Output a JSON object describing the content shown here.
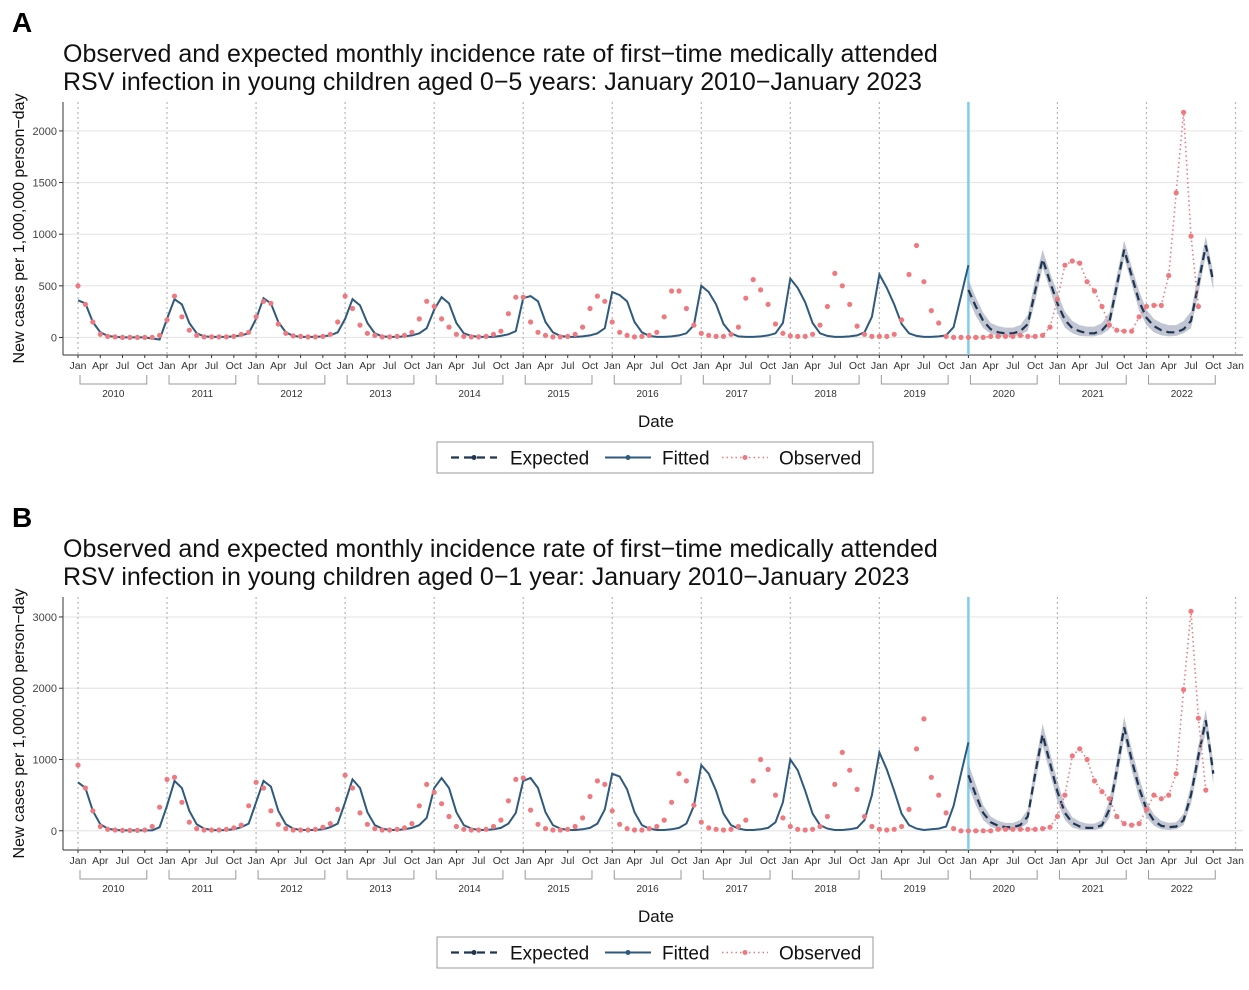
{
  "chart_data": [
    {
      "type": "line",
      "panel_label": "A",
      "title": "Observed and expected monthly incidence rate of first−time medically attended RSV infection in young children aged 0−5 years: January 2010−January 2023",
      "title_lines": [
        "Observed and expected monthly incidence rate of first−time medically attended",
        "RSV infection in young children aged 0−5 years: January 2010−January 2023"
      ],
      "xlabel": "Date",
      "ylabel": "New cases per 1,000,000 person−day",
      "ylim": [
        -170,
        2280
      ],
      "yticks": [
        0,
        500,
        1000,
        1500,
        2000
      ],
      "month_ticks": [
        "Jan",
        "Apr",
        "Jul",
        "Oct"
      ],
      "years": [
        "2010",
        "2011",
        "2012",
        "2013",
        "2014",
        "2015",
        "2016",
        "2017",
        "2018",
        "2019",
        "2020",
        "2021",
        "2022"
      ],
      "x_end_label": "Jan",
      "intervention_date": "2020-01",
      "legend": {
        "position": "bottom",
        "entries": [
          "Expected",
          "Fitted",
          "Observed"
        ]
      },
      "fitted": [
        360,
        330,
        150,
        50,
        15,
        5,
        0,
        0,
        0,
        0,
        -10,
        -20,
        180,
        370,
        320,
        140,
        40,
        10,
        5,
        5,
        5,
        10,
        20,
        40,
        180,
        380,
        330,
        150,
        50,
        15,
        5,
        5,
        5,
        10,
        20,
        50,
        180,
        370,
        310,
        140,
        40,
        10,
        5,
        5,
        10,
        20,
        40,
        90,
        270,
        390,
        330,
        140,
        40,
        15,
        5,
        5,
        5,
        15,
        30,
        60,
        380,
        400,
        350,
        150,
        50,
        15,
        5,
        5,
        10,
        20,
        40,
        90,
        440,
        410,
        350,
        150,
        50,
        15,
        5,
        5,
        10,
        20,
        40,
        120,
        500,
        440,
        320,
        130,
        40,
        10,
        5,
        5,
        10,
        20,
        40,
        140,
        570,
        480,
        340,
        140,
        40,
        15,
        5,
        5,
        10,
        20,
        50,
        200,
        610,
        480,
        320,
        130,
        40,
        15,
        5,
        5,
        10,
        20,
        100,
        400,
        700
      ],
      "expected": [
        460,
        300,
        160,
        80,
        50,
        40,
        40,
        60,
        130,
        450,
        760,
        540,
        330,
        170,
        90,
        60,
        40,
        40,
        70,
        150,
        500,
        850,
        600,
        350,
        190,
        110,
        70,
        50,
        50,
        80,
        160,
        520,
        890,
        540
      ],
      "expected_lower": [
        370,
        210,
        90,
        35,
        15,
        10,
        10,
        25,
        65,
        350,
        680,
        460,
        240,
        95,
        40,
        15,
        10,
        10,
        30,
        80,
        410,
        770,
        520,
        260,
        120,
        50,
        20,
        10,
        15,
        40,
        90,
        420,
        800,
        460
      ],
      "expected_upper": [
        560,
        390,
        240,
        140,
        110,
        95,
        95,
        120,
        220,
        560,
        850,
        630,
        430,
        250,
        160,
        120,
        105,
        105,
        140,
        240,
        600,
        940,
        690,
        450,
        270,
        180,
        140,
        120,
        120,
        160,
        250,
        630,
        980,
        630
      ],
      "observed": [
        500,
        320,
        150,
        30,
        10,
        5,
        0,
        0,
        0,
        0,
        0,
        20,
        170,
        400,
        200,
        70,
        20,
        5,
        5,
        5,
        5,
        10,
        30,
        50,
        200,
        350,
        330,
        130,
        40,
        15,
        10,
        5,
        5,
        10,
        30,
        150,
        400,
        280,
        120,
        40,
        20,
        5,
        5,
        10,
        20,
        50,
        180,
        350,
        300,
        180,
        100,
        30,
        10,
        5,
        5,
        10,
        30,
        60,
        230,
        390,
        390,
        150,
        50,
        20,
        5,
        5,
        10,
        30,
        100,
        280,
        400,
        350,
        150,
        50,
        20,
        5,
        10,
        20,
        50,
        200,
        450,
        450,
        280,
        120,
        40,
        20,
        10,
        10,
        30,
        100,
        380,
        560,
        460,
        320,
        130,
        40,
        15,
        10,
        10,
        30,
        120,
        300,
        620,
        500,
        320,
        110,
        30,
        10,
        10,
        10,
        30,
        170,
        610,
        890,
        540,
        260,
        140,
        10,
        0,
        0,
        0,
        0,
        0,
        10,
        10,
        10,
        10,
        20,
        10,
        10,
        20,
        100,
        370,
        700,
        740,
        720,
        540,
        450,
        300,
        120,
        70,
        60,
        60,
        200,
        300,
        310,
        310,
        600,
        1400,
        2180,
        980,
        300
      ]
    },
    {
      "type": "line",
      "panel_label": "B",
      "title": "Observed and expected monthly incidence rate of first−time medically attended RSV infection in young children aged 0−1 year: January 2010−January 2023",
      "title_lines": [
        "Observed and expected monthly incidence rate of first−time medically attended",
        "RSV infection in young children aged 0−1 year: January 2010−January 2023"
      ],
      "xlabel": "Date",
      "ylabel": "New cases per 1,000,000 person−day",
      "ylim": [
        -270,
        3280
      ],
      "yticks": [
        0,
        1000,
        2000,
        3000
      ],
      "month_ticks": [
        "Jan",
        "Apr",
        "Jul",
        "Oct"
      ],
      "years": [
        "2010",
        "2011",
        "2012",
        "2013",
        "2014",
        "2015",
        "2016",
        "2017",
        "2018",
        "2019",
        "2020",
        "2021",
        "2022"
      ],
      "x_end_label": "Jan",
      "intervention_date": "2020-01",
      "legend": {
        "position": "bottom",
        "entries": [
          "Expected",
          "Fitted",
          "Observed"
        ]
      },
      "fitted": [
        680,
        600,
        280,
        90,
        30,
        10,
        5,
        5,
        5,
        5,
        5,
        50,
        350,
        700,
        600,
        280,
        90,
        30,
        10,
        5,
        10,
        20,
        50,
        100,
        400,
        700,
        620,
        280,
        90,
        30,
        10,
        10,
        10,
        20,
        50,
        100,
        400,
        720,
        600,
        260,
        80,
        30,
        10,
        10,
        20,
        40,
        80,
        180,
        600,
        740,
        600,
        260,
        80,
        30,
        10,
        10,
        20,
        40,
        100,
        250,
        700,
        740,
        600,
        260,
        80,
        30,
        10,
        10,
        20,
        40,
        100,
        300,
        800,
        760,
        580,
        260,
        80,
        30,
        10,
        10,
        20,
        40,
        100,
        350,
        920,
        800,
        560,
        240,
        80,
        30,
        10,
        10,
        20,
        40,
        120,
        400,
        1000,
        850,
        560,
        240,
        80,
        30,
        10,
        10,
        20,
        40,
        150,
        500,
        1100,
        860,
        560,
        240,
        80,
        30,
        10,
        20,
        30,
        60,
        350,
        800,
        1240
      ],
      "expected": [
        780,
        500,
        250,
        120,
        70,
        50,
        50,
        80,
        200,
        800,
        1350,
        950,
        550,
        250,
        110,
        60,
        40,
        40,
        80,
        300,
        850,
        1450,
        1000,
        600,
        300,
        140,
        70,
        50,
        60,
        150,
        500,
        1050,
        1550,
        800
      ],
      "expected_lower": [
        630,
        360,
        150,
        55,
        20,
        10,
        10,
        30,
        110,
        660,
        1200,
        800,
        410,
        150,
        45,
        15,
        10,
        10,
        30,
        180,
        700,
        1300,
        850,
        460,
        190,
        70,
        20,
        10,
        20,
        80,
        380,
        900,
        1400,
        650
      ],
      "expected_upper": [
        940,
        650,
        360,
        200,
        140,
        110,
        110,
        150,
        300,
        950,
        1500,
        1100,
        700,
        360,
        190,
        130,
        100,
        100,
        150,
        430,
        1000,
        1600,
        1150,
        750,
        410,
        230,
        140,
        110,
        120,
        240,
        640,
        1200,
        1700,
        960
      ],
      "observed": [
        920,
        600,
        280,
        60,
        20,
        10,
        5,
        5,
        5,
        10,
        60,
        330,
        720,
        750,
        400,
        120,
        30,
        10,
        10,
        10,
        20,
        40,
        80,
        350,
        680,
        600,
        280,
        90,
        30,
        10,
        10,
        10,
        20,
        50,
        100,
        300,
        780,
        600,
        250,
        90,
        30,
        10,
        10,
        20,
        40,
        100,
        350,
        650,
        540,
        380,
        200,
        60,
        20,
        10,
        10,
        20,
        60,
        150,
        420,
        720,
        740,
        290,
        90,
        30,
        10,
        10,
        20,
        60,
        180,
        480,
        700,
        650,
        280,
        90,
        30,
        10,
        10,
        30,
        60,
        150,
        400,
        800,
        700,
        360,
        120,
        40,
        20,
        10,
        20,
        60,
        150,
        700,
        1000,
        860,
        500,
        180,
        60,
        20,
        10,
        20,
        60,
        200,
        650,
        1100,
        850,
        580,
        200,
        60,
        20,
        10,
        20,
        60,
        300,
        1150,
        1570,
        750,
        500,
        250,
        30,
        0,
        0,
        0,
        0,
        0,
        20,
        20,
        20,
        20,
        20,
        20,
        30,
        50,
        200,
        500,
        1050,
        1150,
        1000,
        700,
        550,
        450,
        200,
        100,
        80,
        100,
        300,
        500,
        450,
        500,
        800,
        1980,
        3080,
        1580,
        570
      ]
    }
  ]
}
